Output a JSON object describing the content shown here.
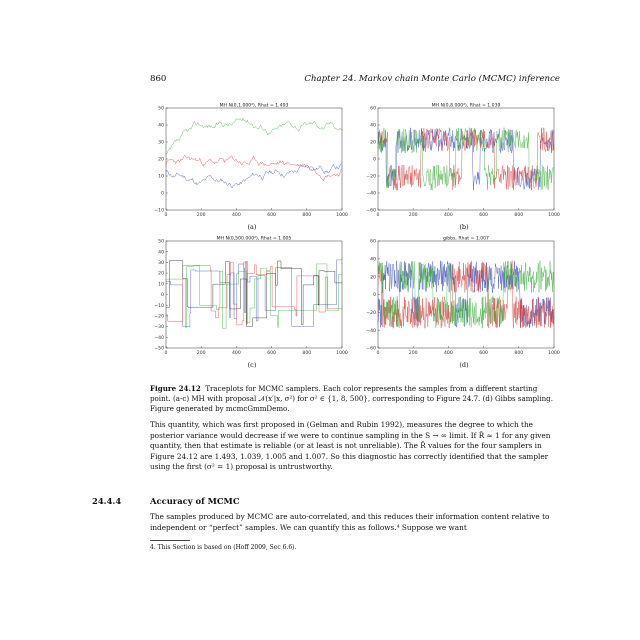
{
  "header": {
    "page_number": "860",
    "chapter_title": "Chapter 24.  Markov chain Monte Carlo (MCMC) inference"
  },
  "panels": [
    {
      "id": "a",
      "title": "MH N(0,1.000²), Rhat = 1.493",
      "label": "(a)",
      "yticks": [
        "50",
        "40",
        "30",
        "20",
        "10",
        "0",
        "−10"
      ],
      "xticks": [
        "0",
        "200",
        "400",
        "600",
        "800",
        "1000"
      ],
      "ylim": [
        -10,
        50
      ],
      "pattern": "slow"
    },
    {
      "id": "b",
      "title": "MH N(0,8.000²), Rhat = 1.039",
      "label": "(b)",
      "yticks": [
        "60",
        "40",
        "20",
        "0",
        "−20",
        "−40",
        "−60"
      ],
      "xticks": [
        "0",
        "200",
        "400",
        "600",
        "800",
        "1000"
      ],
      "ylim": [
        -60,
        60
      ],
      "pattern": "medium"
    },
    {
      "id": "c",
      "title": "MH N(0,500.000²), Rhat = 1.005",
      "label": "(c)",
      "yticks": [
        "50",
        "40",
        "30",
        "20",
        "10",
        "0",
        "−10",
        "−20",
        "−30",
        "−40",
        "−50"
      ],
      "xticks": [
        "0",
        "200",
        "400",
        "600",
        "800",
        "1000"
      ],
      "ylim": [
        -50,
        50
      ],
      "pattern": "step"
    },
    {
      "id": "d",
      "title": "gibbs, Rhat = 1.007",
      "label": "(d)",
      "yticks": [
        "60",
        "40",
        "20",
        "0",
        "−20",
        "−40",
        "−60"
      ],
      "xticks": [
        "0",
        "200",
        "400",
        "600",
        "800",
        "1000"
      ],
      "ylim": [
        -60,
        60
      ],
      "pattern": "fast"
    }
  ],
  "series_colors": {
    "blue": "#3a4fb5",
    "green": "#3fae3f",
    "red": "#d23b3b",
    "black": "#222222"
  },
  "caption": {
    "label": "Figure 24.12",
    "text": "Traceplots for MCMC samplers. Each color represents the samples from a different starting point. (a-c) MH with proposal 𝒩(x′|x, σ²) for σ² ∈ {1, 8, 500}, corresponding to Figure 24.7. (d) Gibbs sampling. Figure generated by mcmcGmmDemo."
  },
  "paragraph1": "This quantity, which was first proposed in (Gelman and Rubin 1992), measures the degree to which the posterior variance would decrease if we were to continue sampling in the S → ∞ limit. If R̂ ≈ 1 for any given quantity, then that estimate is reliable (or at least is not unreliable). The R̂ values for the four samplers in Figure 24.12 are 1.493, 1.039, 1.005 and 1.007. So this diagnostic has correctly identified that the sampler using the first (σ² = 1) proposal is untrustworthy.",
  "section": {
    "number": "24.4.4",
    "title": "Accuracy of MCMC"
  },
  "paragraph2": "The samples produced by MCMC are auto-correlated, and this reduces their information content relative to independent or “perfect” samples. We can quantify this as follows.⁴ Suppose we want",
  "footnote": "4. This Section is based on (Hoff 2009, Sec 6.6)."
}
